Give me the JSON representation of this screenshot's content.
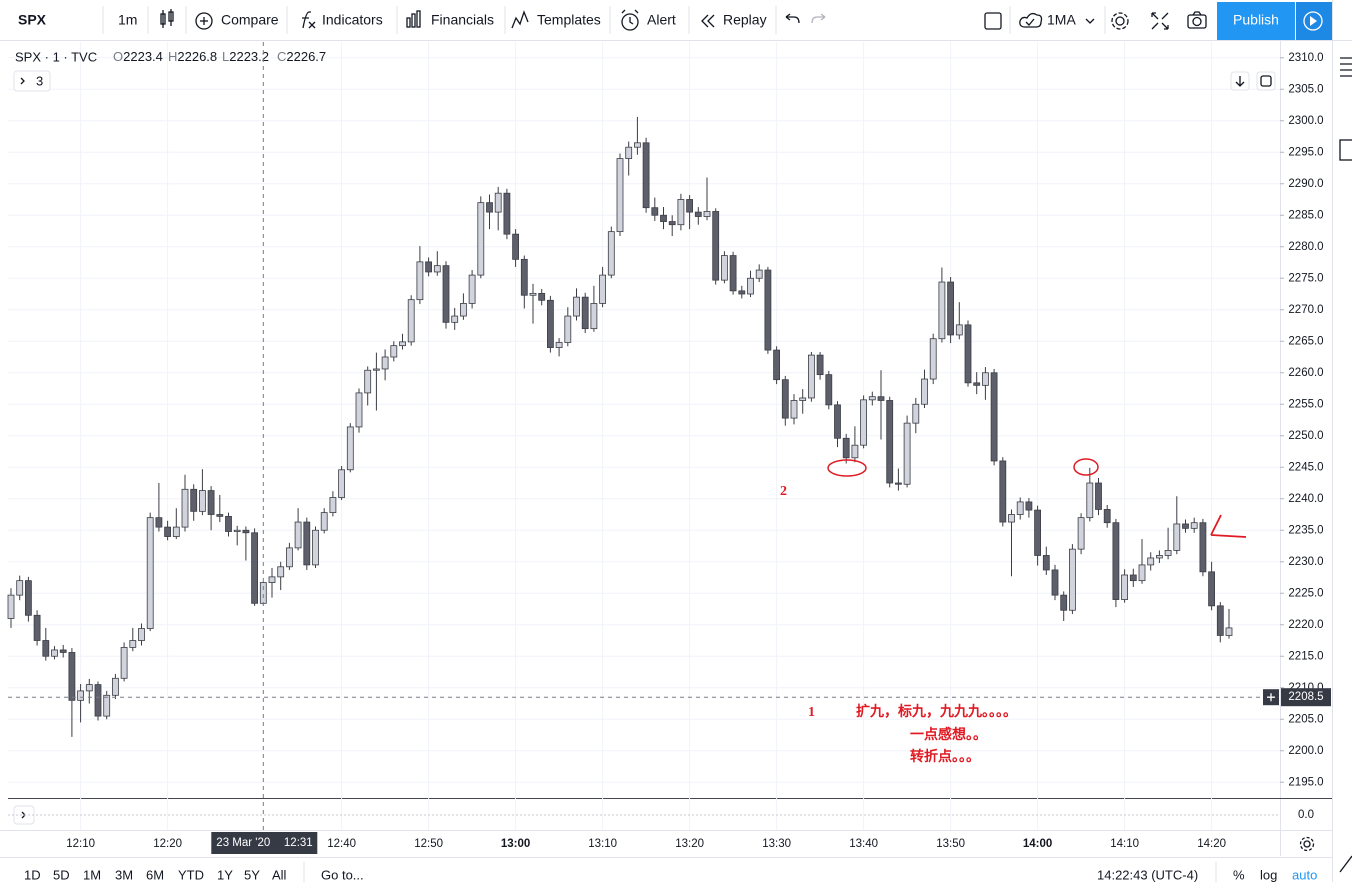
{
  "toolbar": {
    "symbol": "SPX",
    "interval": "1m",
    "items": [
      "Compare",
      "Indicators",
      "Financials",
      "Templates",
      "Alert",
      "Replay"
    ],
    "study": "1MA",
    "publish": "Publish"
  },
  "legend": {
    "title": "SPX · 1 · TVC",
    "fields": [
      {
        "label": "O",
        "value": 2223.4
      },
      {
        "label": "H",
        "value": 2226.8
      },
      {
        "label": "L",
        "value": 2223.2
      },
      {
        "label": "C",
        "value": 2226.7
      }
    ],
    "collapsed_count": 3
  },
  "chart_data": {
    "type": "candlestick",
    "categories": [
      "12:02",
      "12:03",
      "12:04",
      "12:05",
      "12:06",
      "12:07",
      "12:08",
      "12:09",
      "12:10",
      "12:11",
      "12:12",
      "12:13",
      "12:14",
      "12:15",
      "12:16",
      "12:17",
      "12:18",
      "12:19",
      "12:20",
      "12:21",
      "12:22",
      "12:23",
      "12:24",
      "12:25",
      "12:26",
      "12:27",
      "12:28",
      "12:29",
      "12:30",
      "12:31",
      "12:32",
      "12:33",
      "12:34",
      "12:35",
      "12:36",
      "12:37",
      "12:38",
      "12:39",
      "12:40",
      "12:41",
      "12:42",
      "12:43",
      "12:44",
      "12:45",
      "12:46",
      "12:47",
      "12:48",
      "12:49",
      "12:50",
      "12:51",
      "12:52",
      "12:53",
      "12:54",
      "12:55",
      "12:56",
      "12:57",
      "12:58",
      "12:59",
      "13:00",
      "13:01",
      "13:02",
      "13:03",
      "13:04",
      "13:05",
      "13:06",
      "13:07",
      "13:08",
      "13:09",
      "13:10",
      "13:11",
      "13:12",
      "13:13",
      "13:14",
      "13:15",
      "13:16",
      "13:17",
      "13:18",
      "13:19",
      "13:20",
      "13:21",
      "13:22",
      "13:23",
      "13:24",
      "13:25",
      "13:26",
      "13:27",
      "13:28",
      "13:29",
      "13:30",
      "13:31",
      "13:32",
      "13:33",
      "13:34",
      "13:35",
      "13:36",
      "13:37",
      "13:38",
      "13:39",
      "13:40",
      "13:41",
      "13:42",
      "13:43",
      "13:44",
      "13:45",
      "13:46",
      "13:47",
      "13:48",
      "13:49",
      "13:50",
      "13:51",
      "13:52",
      "13:53",
      "13:54",
      "13:55",
      "13:56",
      "13:57",
      "13:58",
      "13:59",
      "14:00",
      "14:01",
      "14:02",
      "14:03",
      "14:04",
      "14:05",
      "14:06",
      "14:07",
      "14:08",
      "14:09",
      "14:10",
      "14:11",
      "14:12",
      "14:13",
      "14:14",
      "14:15",
      "14:16",
      "14:17",
      "14:18",
      "14:19",
      "14:20",
      "14:21",
      "14:22"
    ],
    "open": [
      2221,
      2224.7,
      2227,
      2221.5,
      2217.5,
      2215,
      2216,
      2215.6,
      2208,
      2209.5,
      2210.5,
      2205.5,
      2208.8,
      2211.5,
      2216.4,
      2217.5,
      2219.4,
      2237,
      2235.5,
      2234,
      2235.5,
      2241.5,
      2238,
      2241.3,
      2237.5,
      2237.2,
      2234.8,
      2235,
      2234.6,
      2223.4,
      2226.7,
      2227.6,
      2229.2,
      2232.2,
      2236.3,
      2229.5,
      2235,
      2237.8,
      2240.2,
      2244.6,
      2251.4,
      2256.8,
      2260.4,
      2260.6,
      2262.5,
      2264.3,
      2264.9,
      2271.6,
      2277.6,
      2276,
      2277,
      2268,
      2269,
      2271,
      2275.5,
      2287,
      2285.5,
      2288.5,
      2282,
      2278,
      2272.3,
      2272.6,
      2271.5,
      2264,
      2264.8,
      2269,
      2272,
      2267,
      2271,
      2275.5,
      2282.4,
      2294,
      2295.8,
      2296.5,
      2286.2,
      2285,
      2284,
      2283.5,
      2287.5,
      2285.5,
      2284.8,
      2285.6,
      2274.7,
      2278.6,
      2273,
      2272.5,
      2275,
      2276.3,
      2263.6,
      2258.9,
      2252.8,
      2255.6,
      2256,
      2262.8,
      2259.7,
      2254.9,
      2249.6,
      2246.5,
      2248.5,
      2255.7,
      2256.2,
      2255.6,
      2242.5,
      2242.3,
      2252,
      2255,
      2259,
      2265.4,
      2274.4,
      2266,
      2267.6,
      2258.4,
      2258,
      2260,
      2246,
      2236.3,
      2237.5,
      2239.5,
      2238.2,
      2231,
      2228.7,
      2224.7,
      2222.3,
      2232,
      2237,
      2242.5,
      2238.3,
      2236.2,
      2224,
      2227.9,
      2227,
      2229.5,
      2230.6,
      2231,
      2231.8,
      2236,
      2235.3,
      2236.2,
      2228.4,
      2223,
      2218.3
    ],
    "high": [
      2225.8,
      2227.8,
      2227.6,
      2222.3,
      2219.5,
      2216.6,
      2216.8,
      2216.3,
      2210.6,
      2211.4,
      2211,
      2209.5,
      2212.2,
      2217.2,
      2219.5,
      2220.2,
      2237.8,
      2242.5,
      2236.5,
      2238.5,
      2243.8,
      2242.3,
      2244.7,
      2242,
      2240.6,
      2237.8,
      2235.7,
      2235.6,
      2235.3,
      2226.8,
      2229,
      2230,
      2233,
      2238.5,
      2237,
      2235.6,
      2238.5,
      2241.2,
      2245.2,
      2252,
      2257.5,
      2261,
      2263.2,
      2263.7,
      2265,
      2266.2,
      2272.3,
      2280.1,
      2278.3,
      2279.3,
      2277.7,
      2270.3,
      2272.6,
      2276.3,
      2288,
      2288.3,
      2289.5,
      2289.2,
      2282.8,
      2278.6,
      2274.1,
      2273.3,
      2272.2,
      2265.5,
      2270.4,
      2273.4,
      2272.7,
      2273.8,
      2276.8,
      2283.2,
      2294.8,
      2296.7,
      2300.6,
      2297.3,
      2287.8,
      2286.3,
      2285,
      2288.4,
      2288.2,
      2286.3,
      2291,
      2286.1,
      2279.3,
      2279.2,
      2273.8,
      2276.2,
      2277.2,
      2276.8,
      2264.2,
      2259.5,
      2256.6,
      2257.4,
      2263.3,
      2263.3,
      2260.3,
      2255.5,
      2250.3,
      2251.5,
      2256.4,
      2257,
      2260.4,
      2256.2,
      2244.8,
      2253.2,
      2256,
      2260.5,
      2266.2,
      2276.7,
      2275.2,
      2271.2,
      2268.3,
      2260.1,
      2260.9,
      2260.6,
      2246.6,
      2238.3,
      2240.2,
      2240.1,
      2238.9,
      2232.4,
      2229.5,
      2225.3,
      2232.8,
      2237.7,
      2244.9,
      2243.3,
      2239,
      2236.8,
      2228.8,
      2228.9,
      2233.6,
      2231.5,
      2231.8,
      2235.4,
      2240.4,
      2236.7,
      2237,
      2236.8,
      2230,
      2223.6,
      2222.5
    ],
    "low": [
      2219.5,
      2223.9,
      2220.5,
      2216.7,
      2214.3,
      2214.5,
      2214.8,
      2202.2,
      2204.5,
      2207.5,
      2204.8,
      2205,
      2208.2,
      2211,
      2215.8,
      2216.7,
      2219,
      2234.8,
      2233.4,
      2233.6,
      2234.8,
      2236.5,
      2237.4,
      2235,
      2236.3,
      2234,
      2232.6,
      2230.2,
      2223,
      2223.2,
      2224.3,
      2225.5,
      2228.7,
      2231.8,
      2228.7,
      2229,
      2234.5,
      2237.2,
      2239.8,
      2244.2,
      2250.5,
      2254.8,
      2254,
      2258.8,
      2261.8,
      2263.7,
      2264.3,
      2270.9,
      2275.3,
      2275.4,
      2267,
      2266.8,
      2268.4,
      2270.2,
      2275,
      2282.8,
      2282.6,
      2281.2,
      2276.8,
      2270.2,
      2267.8,
      2270.7,
      2263.2,
      2262.6,
      2264.2,
      2268.3,
      2266.3,
      2266.5,
      2270.4,
      2275,
      2281.7,
      2291.3,
      2294.6,
      2285.4,
      2284.1,
      2282.8,
      2281.7,
      2282.6,
      2282.8,
      2283.5,
      2284.2,
      2274,
      2274.2,
      2272.4,
      2271.8,
      2272,
      2274.4,
      2263,
      2258.2,
      2251.6,
      2251.8,
      2253.5,
      2255.4,
      2258.9,
      2254.2,
      2248.2,
      2245.6,
      2245.8,
      2248,
      2254.8,
      2249.4,
      2241.8,
      2241.3,
      2241.8,
      2250.4,
      2254.4,
      2258.2,
      2264.8,
      2264.7,
      2265.3,
      2257.8,
      2256.6,
      2255.7,
      2245.3,
      2235.6,
      2227.7,
      2236.7,
      2237,
      2229.4,
      2227.9,
      2223.9,
      2220.6,
      2221.7,
      2231.2,
      2236.4,
      2237.4,
      2235.4,
      2222.8,
      2223.5,
      2226,
      2226.5,
      2228.6,
      2229.8,
      2230.4,
      2231.2,
      2234.6,
      2234.6,
      2227.7,
      2222.3,
      2217.2,
      2217.8
    ],
    "close": [
      2224.7,
      2227,
      2221.5,
      2217.5,
      2215,
      2216,
      2215.6,
      2208,
      2209.5,
      2210.5,
      2205.5,
      2208.8,
      2211.5,
      2216.4,
      2217.5,
      2219.4,
      2237,
      2235.5,
      2234,
      2235.5,
      2241.5,
      2238,
      2241.3,
      2237.5,
      2237.2,
      2234.8,
      2235,
      2234.6,
      2223.4,
      2226.7,
      2227.6,
      2229.2,
      2232.2,
      2236.3,
      2229.5,
      2235,
      2237.8,
      2240.2,
      2244.6,
      2251.4,
      2256.8,
      2260.4,
      2260.6,
      2262.5,
      2264.3,
      2264.9,
      2271.6,
      2277.6,
      2276,
      2277,
      2268,
      2269,
      2271,
      2275.5,
      2287,
      2285.5,
      2288.5,
      2282,
      2278,
      2272.3,
      2272.6,
      2271.5,
      2264,
      2264.8,
      2269,
      2272,
      2267,
      2271,
      2275.5,
      2282.4,
      2294,
      2295.8,
      2296.5,
      2286.2,
      2285,
      2284,
      2283.5,
      2287.5,
      2285.5,
      2284.8,
      2285.6,
      2274.7,
      2278.6,
      2273,
      2272.5,
      2275,
      2276.3,
      2263.6,
      2258.9,
      2252.8,
      2255.6,
      2256,
      2262.8,
      2259.7,
      2254.9,
      2249.6,
      2246.5,
      2248.5,
      2255.7,
      2256.2,
      2255.6,
      2242.5,
      2242.3,
      2252,
      2255,
      2259,
      2265.4,
      2274.4,
      2266,
      2267.6,
      2258.4,
      2258,
      2260,
      2246,
      2236.3,
      2237.5,
      2239.5,
      2238.2,
      2231,
      2228.7,
      2224.7,
      2222.3,
      2232,
      2237,
      2242.5,
      2238.3,
      2236.2,
      2224,
      2227.9,
      2227,
      2229.5,
      2230.6,
      2231,
      2231.8,
      2236,
      2235.3,
      2236.2,
      2228.4,
      2223,
      2218.3,
      2219.5
    ],
    "up_color": "#d1d4dc",
    "down_color": "#5d606b",
    "border_color": "#3b3d45",
    "ylim": [
      2192.5,
      2312.5
    ],
    "yticks": [
      {
        "value": 2195,
        "label": "2195.0"
      },
      {
        "value": 2200,
        "label": "2200.0"
      },
      {
        "value": 2205,
        "label": "2205.0"
      },
      {
        "value": 2210,
        "label": "2210.0"
      },
      {
        "value": 2215,
        "label": "2215.0"
      },
      {
        "value": 2220,
        "label": "2220.0"
      },
      {
        "value": 2225,
        "label": "2225.0"
      },
      {
        "value": 2230,
        "label": "2230.0"
      },
      {
        "value": 2235,
        "label": "2235.0"
      },
      {
        "value": 2240,
        "label": "2240.0"
      },
      {
        "value": 2245,
        "label": "2245.0"
      },
      {
        "value": 2250,
        "label": "2250.0"
      },
      {
        "value": 2255,
        "label": "2255.0"
      },
      {
        "value": 2260,
        "label": "2260.0"
      },
      {
        "value": 2265,
        "label": "2265.0"
      },
      {
        "value": 2270,
        "label": "2270.0"
      },
      {
        "value": 2275,
        "label": "2275.0"
      },
      {
        "value": 2280,
        "label": "2280.0"
      },
      {
        "value": 2285,
        "label": "2285.0"
      },
      {
        "value": 2290,
        "label": "2290.0"
      },
      {
        "value": 2295,
        "label": "2295.0"
      },
      {
        "value": 2300,
        "label": "2300.0"
      },
      {
        "value": 2305,
        "label": "2305.0"
      },
      {
        "value": 2310,
        "label": "2310.0"
      }
    ],
    "xticks": [
      "12:10",
      "12:20",
      "12:40",
      "12:50",
      "13:00",
      "13:10",
      "13:20",
      "13:30",
      "13:40",
      "13:50",
      "14:00",
      "14:10",
      "14:20"
    ],
    "grid": true,
    "crosshair": {
      "date": "23 Mar '20",
      "time": "12:31",
      "price": 2208.5
    },
    "indicator": {
      "ylim": [
        -1.5,
        1.5
      ],
      "yticks": [
        {
          "value": 0,
          "label": "0.0"
        }
      ]
    }
  },
  "annotations": [
    "2",
    "1",
    "扩九，标九，九九九。。。。",
    "一点感想。。",
    "转折点。。。"
  ],
  "footer": {
    "ranges": [
      "1D",
      "5D",
      "1M",
      "3M",
      "6M",
      "YTD",
      "1Y",
      "5Y",
      "All"
    ],
    "goto": "Go to...",
    "clock": "14:22:43 (UTC-4)",
    "options": [
      "%",
      "log",
      "auto"
    ]
  }
}
